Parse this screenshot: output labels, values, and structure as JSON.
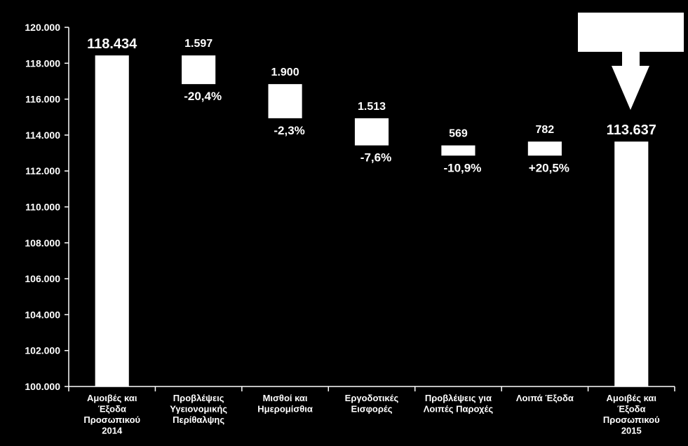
{
  "chart_data": {
    "type": "bar",
    "subtype": "waterfall",
    "title": "",
    "xlabel": "",
    "ylabel": "",
    "ylim": [
      100000,
      120000
    ],
    "yticks": [
      "100.000",
      "102.000",
      "104.000",
      "106.000",
      "108.000",
      "110.000",
      "112.000",
      "114.000",
      "116.000",
      "118.000",
      "120.000"
    ],
    "ytick_values": [
      100000,
      102000,
      104000,
      106000,
      108000,
      110000,
      112000,
      114000,
      116000,
      118000,
      120000
    ],
    "bars": [
      {
        "category": [
          "Αμοιβές και",
          "Έξοδα",
          "Προσωπικού",
          "2014"
        ],
        "kind": "total",
        "low": 100000,
        "high": 118434,
        "label": "118.434",
        "change": ""
      },
      {
        "category": [
          "Προβλέψεις",
          "Υγειονομικής",
          "Περίθαλψης"
        ],
        "kind": "delta",
        "low": 116837,
        "high": 118434,
        "label": "1.597",
        "change": "-20,4%"
      },
      {
        "category": [
          "Μισθοί και",
          "Ημερομίσθια"
        ],
        "kind": "delta",
        "low": 114937,
        "high": 116837,
        "label": "1.900",
        "change": "-2,3%"
      },
      {
        "category": [
          "Εργοδοτικές",
          "Εισφορές"
        ],
        "kind": "delta",
        "low": 113424,
        "high": 114937,
        "label": "1.513",
        "change": "-7,6%"
      },
      {
        "category": [
          "Προβλέψεις για",
          "Λοιπές Παροχές"
        ],
        "kind": "delta",
        "low": 112855,
        "high": 113424,
        "label": "569",
        "change": "-10,9%"
      },
      {
        "category": [
          "Λοιπά Έξοδα"
        ],
        "kind": "delta",
        "low": 112855,
        "high": 113637,
        "label": "782",
        "change": "+20,5%"
      },
      {
        "category": [
          "Αμοιβές και",
          "Έξοδα",
          "Προσωπικού",
          "2015"
        ],
        "kind": "total",
        "low": 100000,
        "high": 113637,
        "label": "113.637",
        "change": ""
      }
    ],
    "callout_arrow": {
      "text": "",
      "points_to": "Αμοιβές και Έξοδα Προσωπικού 2015"
    },
    "grid": false,
    "legend": "none",
    "colors": {
      "background": "#000000",
      "bar": "#ffffff",
      "axis": "#ffffff",
      "text": "#ffffff"
    }
  }
}
